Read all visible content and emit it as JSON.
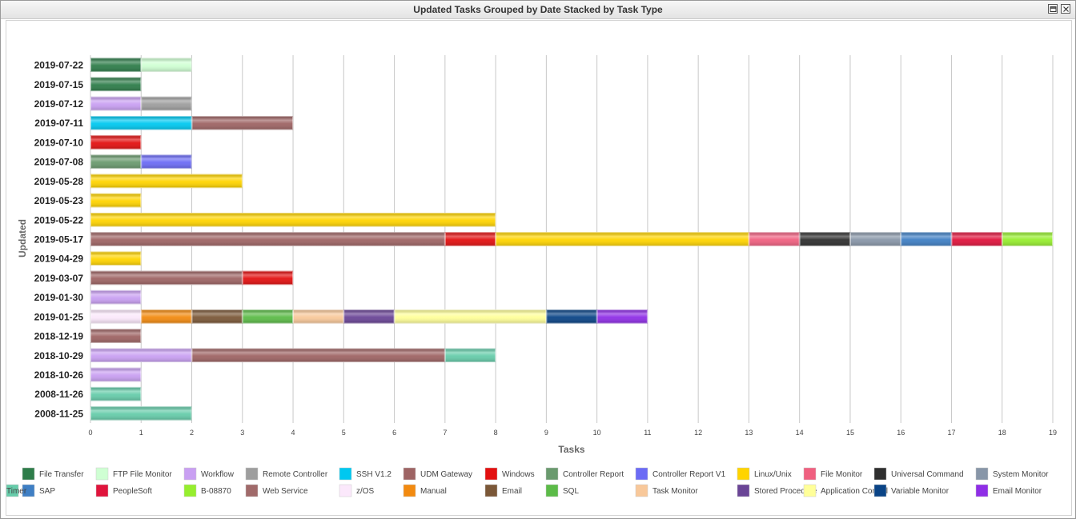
{
  "window": {
    "title": "Updated Tasks Grouped by Date Stacked by Task Type"
  },
  "chart_data": {
    "type": "bar",
    "orientation": "horizontal",
    "stacked": true,
    "title": "Updated Tasks Grouped by Date Stacked by Task Type",
    "xlabel": "Tasks",
    "ylabel": "Updated",
    "xlim": [
      0,
      19
    ],
    "xticks": [
      0,
      1,
      2,
      3,
      4,
      5,
      6,
      7,
      8,
      9,
      10,
      11,
      12,
      13,
      14,
      15,
      16,
      17,
      18,
      19
    ],
    "grid": true,
    "legend_position": "bottom",
    "categories": [
      "2019-07-22",
      "2019-07-15",
      "2019-07-12",
      "2019-07-11",
      "2019-07-10",
      "2019-07-08",
      "2019-05-28",
      "2019-05-23",
      "2019-05-22",
      "2019-05-17",
      "2019-04-29",
      "2019-03-07",
      "2019-01-30",
      "2019-01-25",
      "2018-12-19",
      "2018-10-29",
      "2018-10-26",
      "2008-11-26",
      "2008-11-25"
    ],
    "series": [
      {
        "name": "File Transfer",
        "color": "#2e7d4a",
        "values": [
          1,
          1,
          0,
          0,
          0,
          0,
          0,
          0,
          0,
          0,
          0,
          0,
          0,
          0,
          0,
          0,
          0,
          0,
          0
        ]
      },
      {
        "name": "FTP File Monitor",
        "color": "#cfffd3",
        "values": [
          1,
          0,
          0,
          0,
          0,
          0,
          0,
          0,
          0,
          0,
          0,
          0,
          0,
          0,
          0,
          0,
          0,
          0,
          0
        ]
      },
      {
        "name": "Workflow",
        "color": "#c9a0f2",
        "values": [
          0,
          0,
          1,
          0,
          0,
          0,
          0,
          0,
          0,
          0,
          0,
          0,
          1,
          0,
          0,
          2,
          1,
          0,
          0
        ]
      },
      {
        "name": "Remote Controller",
        "color": "#9e9e9e",
        "values": [
          0,
          0,
          1,
          0,
          0,
          0,
          0,
          0,
          0,
          0,
          0,
          0,
          0,
          0,
          0,
          0,
          0,
          0,
          0
        ]
      },
      {
        "name": "SSH V1.2",
        "color": "#00c8f0",
        "values": [
          0,
          0,
          0,
          2,
          0,
          0,
          0,
          0,
          0,
          0,
          0,
          0,
          0,
          0,
          0,
          0,
          0,
          0,
          0
        ]
      },
      {
        "name": "UDM Gateway",
        "color": "#9e6464",
        "values": [
          0,
          0,
          0,
          2,
          0,
          0,
          0,
          0,
          0,
          7,
          0,
          3,
          0,
          0,
          1,
          5,
          0,
          0,
          0
        ]
      },
      {
        "name": "Windows",
        "color": "#e31010",
        "values": [
          0,
          0,
          0,
          0,
          1,
          0,
          0,
          0,
          0,
          1,
          0,
          1,
          0,
          0,
          0,
          0,
          0,
          0,
          0
        ]
      },
      {
        "name": "Controller Report",
        "color": "#6a9a6e",
        "values": [
          0,
          0,
          0,
          0,
          0,
          1,
          0,
          0,
          0,
          0,
          0,
          0,
          0,
          0,
          0,
          0,
          0,
          0,
          0
        ]
      },
      {
        "name": "Controller Report V1",
        "color": "#6b6bf5",
        "values": [
          0,
          0,
          0,
          0,
          0,
          1,
          0,
          0,
          0,
          0,
          0,
          0,
          0,
          0,
          0,
          0,
          0,
          0,
          0
        ]
      },
      {
        "name": "Linux/Unix",
        "color": "#ffd400",
        "values": [
          0,
          0,
          0,
          0,
          0,
          0,
          3,
          1,
          8,
          5,
          1,
          0,
          0,
          0,
          0,
          0,
          0,
          0,
          0
        ]
      },
      {
        "name": "File Monitor",
        "color": "#f06080",
        "values": [
          0,
          0,
          0,
          0,
          0,
          0,
          0,
          0,
          0,
          1,
          0,
          0,
          0,
          0,
          0,
          0,
          0,
          0,
          0
        ]
      },
      {
        "name": "Universal Command",
        "color": "#2f2f2f",
        "values": [
          0,
          0,
          0,
          0,
          0,
          0,
          0,
          0,
          0,
          1,
          0,
          0,
          0,
          0,
          0,
          0,
          0,
          0,
          0
        ]
      },
      {
        "name": "System Monitor",
        "color": "#8896a8",
        "values": [
          0,
          0,
          0,
          0,
          0,
          0,
          0,
          0,
          0,
          1,
          0,
          0,
          0,
          0,
          0,
          0,
          0,
          0,
          0
        ]
      },
      {
        "name": "SAP",
        "color": "#3f7fc4",
        "values": [
          0,
          0,
          0,
          0,
          0,
          0,
          0,
          0,
          0,
          1,
          0,
          0,
          0,
          0,
          0,
          0,
          0,
          0,
          0
        ]
      },
      {
        "name": "PeopleSoft",
        "color": "#e0143c",
        "values": [
          0,
          0,
          0,
          0,
          0,
          0,
          0,
          0,
          0,
          1,
          0,
          0,
          0,
          0,
          0,
          0,
          0,
          0,
          0
        ]
      },
      {
        "name": "B-08870",
        "color": "#96ee2e",
        "values": [
          0,
          0,
          0,
          0,
          0,
          0,
          0,
          0,
          0,
          1,
          0,
          0,
          0,
          0,
          0,
          0,
          0,
          0,
          0
        ]
      },
      {
        "name": "Web Service",
        "color": "#a06a6a",
        "values": [
          0,
          0,
          0,
          0,
          0,
          0,
          0,
          0,
          0,
          0,
          0,
          0,
          0,
          0,
          0,
          0,
          0,
          0,
          0
        ]
      },
      {
        "name": "z/OS",
        "color": "#fbe8fb",
        "values": [
          0,
          0,
          0,
          0,
          0,
          0,
          0,
          0,
          0,
          0,
          0,
          0,
          0,
          1,
          0,
          0,
          0,
          0,
          0
        ]
      },
      {
        "name": "Manual",
        "color": "#f28a10",
        "values": [
          0,
          0,
          0,
          0,
          0,
          0,
          0,
          0,
          0,
          0,
          0,
          0,
          0,
          1,
          0,
          0,
          0,
          0,
          0
        ]
      },
      {
        "name": "Email",
        "color": "#7b5838",
        "values": [
          0,
          0,
          0,
          0,
          0,
          0,
          0,
          0,
          0,
          0,
          0,
          0,
          0,
          1,
          0,
          0,
          0,
          0,
          0
        ]
      },
      {
        "name": "SQL",
        "color": "#5cbb48",
        "values": [
          0,
          0,
          0,
          0,
          0,
          0,
          0,
          0,
          0,
          0,
          0,
          0,
          0,
          1,
          0,
          0,
          0,
          0,
          0
        ]
      },
      {
        "name": "Task Monitor",
        "color": "#f8c89a",
        "values": [
          0,
          0,
          0,
          0,
          0,
          0,
          0,
          0,
          0,
          0,
          0,
          0,
          0,
          1,
          0,
          0,
          0,
          0,
          0
        ]
      },
      {
        "name": "Stored Procedure",
        "color": "#6a4596",
        "values": [
          0,
          0,
          0,
          0,
          0,
          0,
          0,
          0,
          0,
          0,
          0,
          0,
          0,
          1,
          0,
          0,
          0,
          0,
          0
        ]
      },
      {
        "name": "Application Control",
        "color": "#ffff99",
        "values": [
          0,
          0,
          0,
          0,
          0,
          0,
          0,
          0,
          0,
          0,
          0,
          0,
          0,
          3,
          0,
          0,
          0,
          0,
          0
        ]
      },
      {
        "name": "Variable Monitor",
        "color": "#0a4486",
        "values": [
          0,
          0,
          0,
          0,
          0,
          0,
          0,
          0,
          0,
          0,
          0,
          0,
          0,
          1,
          0,
          0,
          0,
          0,
          0
        ]
      },
      {
        "name": "Email Monitor",
        "color": "#8f2ee6",
        "values": [
          0,
          0,
          0,
          0,
          0,
          0,
          0,
          0,
          0,
          0,
          0,
          0,
          0,
          1,
          0,
          0,
          0,
          0,
          0
        ]
      },
      {
        "name": "Timer",
        "color": "#66ccaa",
        "values": [
          0,
          0,
          0,
          0,
          0,
          0,
          0,
          0,
          0,
          0,
          0,
          0,
          0,
          0,
          0,
          1,
          0,
          1,
          2
        ]
      }
    ]
  }
}
